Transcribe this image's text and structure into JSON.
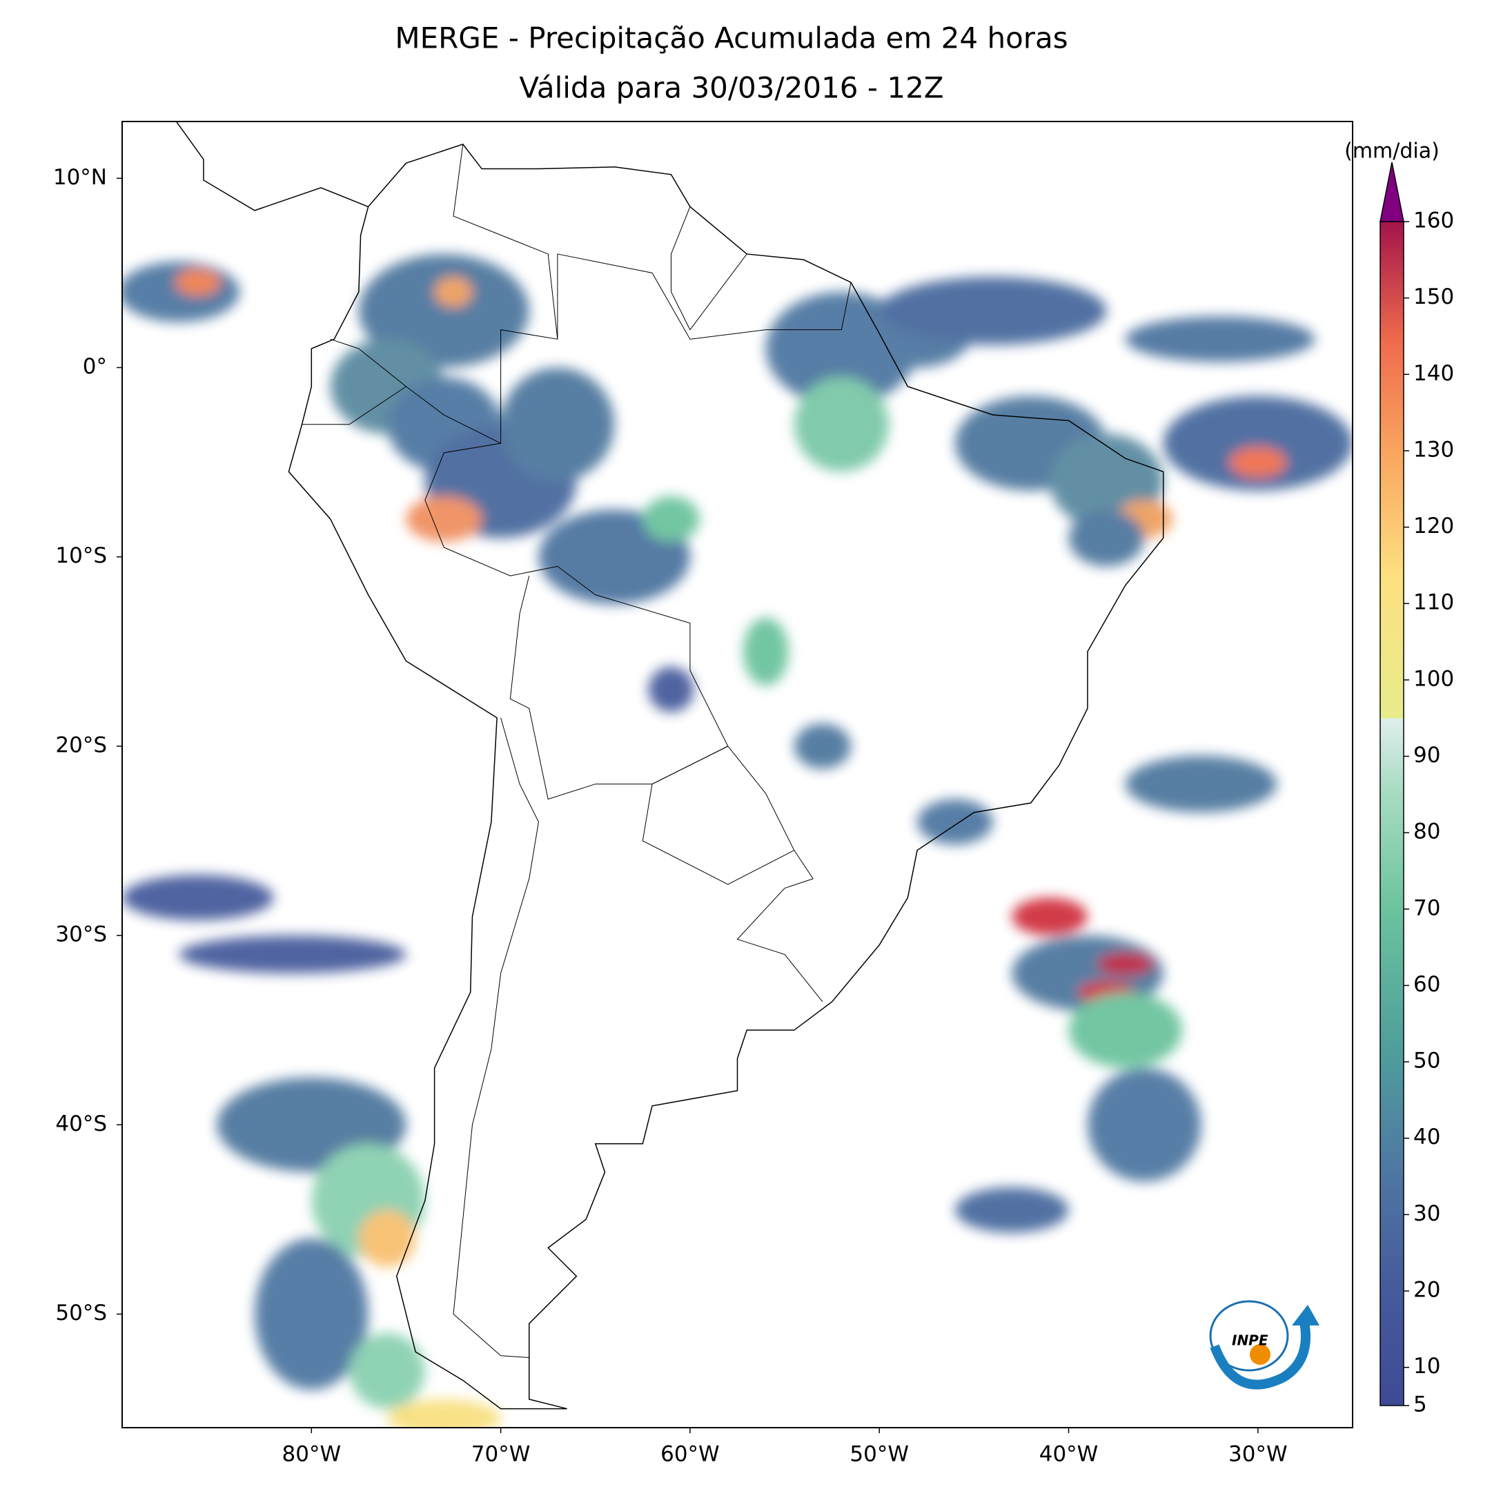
{
  "chart_data": {
    "type": "map",
    "title": "MERGE - Precipitação Acumulada em 24 horas",
    "subtitle": "Válida para 30/03/2016 - 12Z",
    "xlim": [
      -90,
      -25
    ],
    "ylim": [
      -56,
      13
    ],
    "xticks": [
      {
        "value": -80,
        "label": "80°W"
      },
      {
        "value": -70,
        "label": "70°W"
      },
      {
        "value": -60,
        "label": "60°W"
      },
      {
        "value": -50,
        "label": "50°W"
      },
      {
        "value": -40,
        "label": "40°W"
      },
      {
        "value": -30,
        "label": "30°W"
      }
    ],
    "yticks": [
      {
        "value": 10,
        "label": "10°N"
      },
      {
        "value": 0,
        "label": "0°"
      },
      {
        "value": -10,
        "label": "10°S"
      },
      {
        "value": -20,
        "label": "20°S"
      },
      {
        "value": -30,
        "label": "30°S"
      },
      {
        "value": -40,
        "label": "40°S"
      },
      {
        "value": -50,
        "label": "50°S"
      }
    ],
    "colorbar": {
      "label": "(mm/dia)",
      "lim": [
        5,
        160
      ],
      "ticks": [
        5,
        10,
        20,
        30,
        40,
        50,
        60,
        70,
        80,
        90,
        100,
        110,
        120,
        130,
        140,
        150,
        160
      ]
    },
    "logo": "INPE"
  }
}
